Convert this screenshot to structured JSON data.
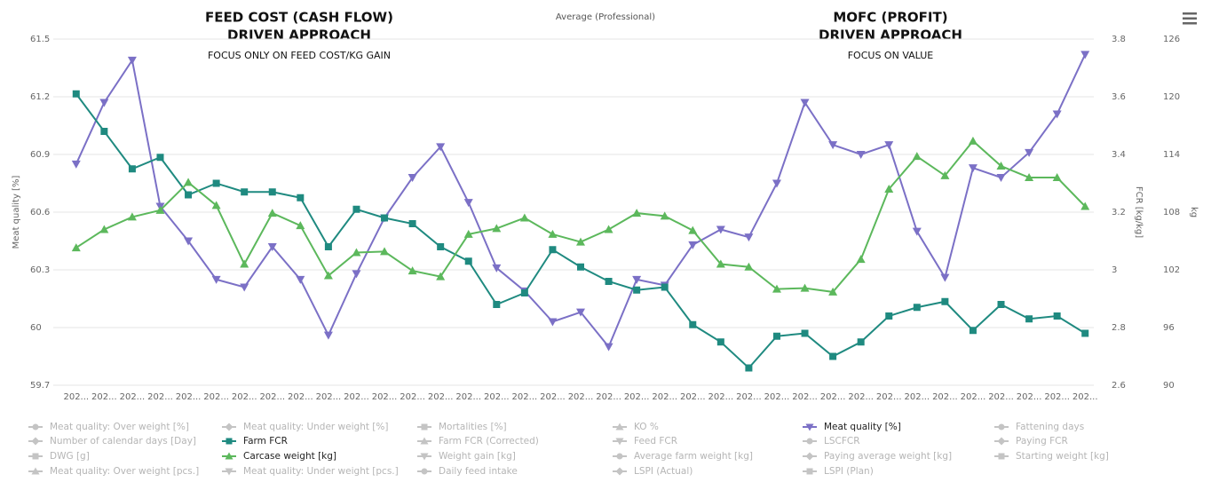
{
  "chart_data": {
    "type": "line",
    "title": "Average (Professional)",
    "annotations": [
      {
        "lines": [
          "FEED COST (CASH FLOW)",
          "DRIVEN APPROACH"
        ],
        "note": "FOCUS ONLY ON FEED COST/KG GAIN"
      },
      {
        "lines": [
          "MOFC (PROFIT)",
          "DRIVEN APPROACH"
        ],
        "note": "FOCUS ON VALUE"
      }
    ],
    "y_label": "Meat quality [%]",
    "y2_label": "FCR [kg/kg]",
    "y3_label": "kg",
    "categories": [
      "202...",
      "202...",
      "202...",
      "202...",
      "202...",
      "202...",
      "202...",
      "202...",
      "202...",
      "202...",
      "202...",
      "202...",
      "202...",
      "202...",
      "202...",
      "202...",
      "202...",
      "202...",
      "202...",
      "202...",
      "202...",
      "202...",
      "202...",
      "202...",
      "202...",
      "202...",
      "202...",
      "202...",
      "202...",
      "202...",
      "202...",
      "202...",
      "202...",
      "202...",
      "202...",
      "202...",
      "202..."
    ],
    "ylim": [
      59.7,
      61.5
    ],
    "yticks": [
      59.7,
      60,
      60.3,
      60.6,
      60.9,
      61.2,
      61.5
    ],
    "y2lim": [
      2.6,
      3.8
    ],
    "y2ticks": [
      2.6,
      2.8,
      3,
      3.2,
      3.4,
      3.6,
      3.8
    ],
    "y3lim": [
      90,
      126
    ],
    "y3ticks": [
      90,
      96,
      102,
      108,
      114,
      120,
      126
    ],
    "grid": true,
    "series": [
      {
        "name": "Meat quality: Over weight [%]",
        "visible": false,
        "marker": "circle"
      },
      {
        "name": "Meat quality: Under weight [%]",
        "visible": false,
        "marker": "diamond"
      },
      {
        "name": "Mortalities [%]",
        "visible": false,
        "marker": "square"
      },
      {
        "name": "KO %",
        "visible": false,
        "marker": "triangle"
      },
      {
        "name": "Meat quality [%]",
        "visible": true,
        "marker": "triangle-down",
        "color": "#7b70c6",
        "axis": "y",
        "values": [
          60.85,
          61.17,
          61.39,
          60.63,
          60.45,
          60.25,
          60.21,
          60.42,
          60.25,
          59.96,
          60.28,
          60.57,
          60.78,
          60.94,
          60.65,
          60.31,
          60.19,
          60.03,
          60.08,
          59.9,
          60.25,
          60.22,
          60.43,
          60.51,
          60.47,
          60.75,
          61.17,
          60.95,
          60.9,
          60.95,
          60.5,
          60.26,
          60.83,
          60.78,
          60.91,
          61.11,
          61.42
        ]
      },
      {
        "name": "Fattening days",
        "visible": false,
        "marker": "circle"
      },
      {
        "name": "Number of calendar days [Day]",
        "visible": false,
        "marker": "diamond"
      },
      {
        "name": "Farm FCR",
        "visible": true,
        "marker": "square",
        "color": "#1f8a80",
        "axis": "y2",
        "values": [
          3.61,
          3.48,
          3.35,
          3.39,
          3.26,
          3.3,
          3.27,
          3.27,
          3.25,
          3.08,
          3.21,
          3.18,
          3.16,
          3.08,
          3.03,
          2.88,
          2.92,
          3.07,
          3.01,
          2.96,
          2.93,
          2.94,
          2.81,
          2.75,
          2.66,
          2.77,
          2.78,
          2.7,
          2.75,
          2.84,
          2.87,
          2.89,
          2.79,
          2.88,
          2.83,
          2.84,
          2.78
        ]
      },
      {
        "name": "Farm FCR (Corrected)",
        "visible": false,
        "marker": "triangle"
      },
      {
        "name": "Feed FCR",
        "visible": false,
        "marker": "triangle-down"
      },
      {
        "name": "LSCFCR",
        "visible": false,
        "marker": "circle"
      },
      {
        "name": "Paying FCR",
        "visible": false,
        "marker": "diamond"
      },
      {
        "name": "DWG [g]",
        "visible": false,
        "marker": "square"
      },
      {
        "name": "Carcase weight [kg]",
        "visible": true,
        "marker": "triangle",
        "color": "#5cb85c",
        "axis": "y3",
        "values": [
          104.3,
          106.2,
          107.5,
          108.2,
          111.1,
          108.7,
          102.6,
          107.9,
          106.6,
          101.4,
          103.8,
          103.9,
          101.9,
          101.3,
          105.7,
          106.3,
          107.4,
          105.7,
          104.9,
          106.2,
          107.9,
          107.6,
          106.1,
          102.6,
          102.3,
          100,
          100.1,
          99.7,
          103.1,
          110.4,
          113.8,
          111.8,
          115.4,
          112.8,
          111.6,
          111.6,
          108.6
        ]
      },
      {
        "name": "Weight gain [kg]",
        "visible": false,
        "marker": "triangle-down"
      },
      {
        "name": "Average farm weight [kg]",
        "visible": false,
        "marker": "circle"
      },
      {
        "name": "Paying average weight [kg]",
        "visible": false,
        "marker": "diamond"
      },
      {
        "name": "Starting weight [kg]",
        "visible": false,
        "marker": "square"
      },
      {
        "name": "Meat quality: Over weight [pcs.]",
        "visible": false,
        "marker": "triangle"
      },
      {
        "name": "Meat quality: Under weight [pcs.]",
        "visible": false,
        "marker": "triangle-down"
      },
      {
        "name": "Daily feed intake",
        "visible": false,
        "marker": "circle"
      },
      {
        "name": "LSPI (Actual)",
        "visible": false,
        "marker": "diamond"
      },
      {
        "name": "LSPI (Plan)",
        "visible": false,
        "marker": "square"
      }
    ]
  }
}
